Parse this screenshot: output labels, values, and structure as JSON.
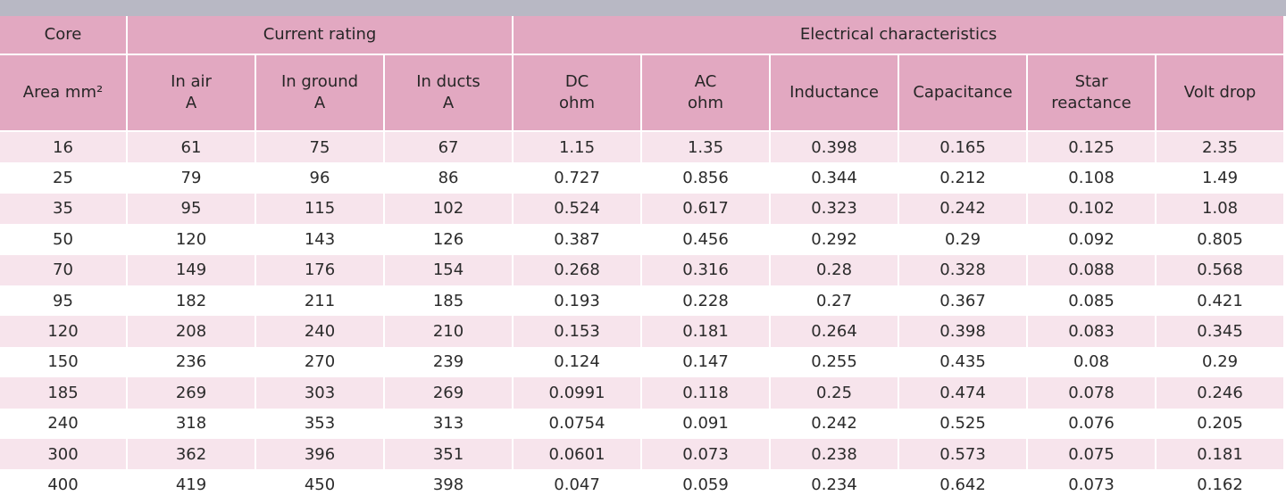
{
  "colors": {
    "header_bg": "#e2a8c1",
    "row_stripe": "#f7e4ec",
    "row_plain": "#ffffff",
    "top_bar": "#b8b8c4"
  },
  "header": {
    "group": {
      "core": "Core",
      "current_rating": "Current rating",
      "electrical": "Electrical characteristics"
    },
    "columns": {
      "area": "Area mm²",
      "in_air": [
        "In air",
        "A"
      ],
      "in_ground": [
        "In ground",
        "A"
      ],
      "in_ducts": [
        "In ducts",
        "A"
      ],
      "dc": [
        "DC",
        "ohm"
      ],
      "ac": [
        "AC",
        "ohm"
      ],
      "inductance": "Inductance",
      "capacitance": "Capacitance",
      "star_reactance": [
        "Star",
        "reactance"
      ],
      "volt_drop": "Volt drop"
    }
  },
  "rows": [
    [
      "16",
      "61",
      "75",
      "67",
      "1.15",
      "1.35",
      "0.398",
      "0.165",
      "0.125",
      "2.35"
    ],
    [
      "25",
      "79",
      "96",
      "86",
      "0.727",
      "0.856",
      "0.344",
      "0.212",
      "0.108",
      "1.49"
    ],
    [
      "35",
      "95",
      "115",
      "102",
      "0.524",
      "0.617",
      "0.323",
      "0.242",
      "0.102",
      "1.08"
    ],
    [
      "50",
      "120",
      "143",
      "126",
      "0.387",
      "0.456",
      "0.292",
      "0.29",
      "0.092",
      "0.805"
    ],
    [
      "70",
      "149",
      "176",
      "154",
      "0.268",
      "0.316",
      "0.28",
      "0.328",
      "0.088",
      "0.568"
    ],
    [
      "95",
      "182",
      "211",
      "185",
      "0.193",
      "0.228",
      "0.27",
      "0.367",
      "0.085",
      "0.421"
    ],
    [
      "120",
      "208",
      "240",
      "210",
      "0.153",
      "0.181",
      "0.264",
      "0.398",
      "0.083",
      "0.345"
    ],
    [
      "150",
      "236",
      "270",
      "239",
      "0.124",
      "0.147",
      "0.255",
      "0.435",
      "0.08",
      "0.29"
    ],
    [
      "185",
      "269",
      "303",
      "269",
      "0.0991",
      "0.118",
      "0.25",
      "0.474",
      "0.078",
      "0.246"
    ],
    [
      "240",
      "318",
      "353",
      "313",
      "0.0754",
      "0.091",
      "0.242",
      "0.525",
      "0.076",
      "0.205"
    ],
    [
      "300",
      "362",
      "396",
      "351",
      "0.0601",
      "0.073",
      "0.238",
      "0.573",
      "0.075",
      "0.181"
    ],
    [
      "400",
      "419",
      "450",
      "398",
      "0.047",
      "0.059",
      "0.234",
      "0.642",
      "0.073",
      "0.162"
    ]
  ]
}
